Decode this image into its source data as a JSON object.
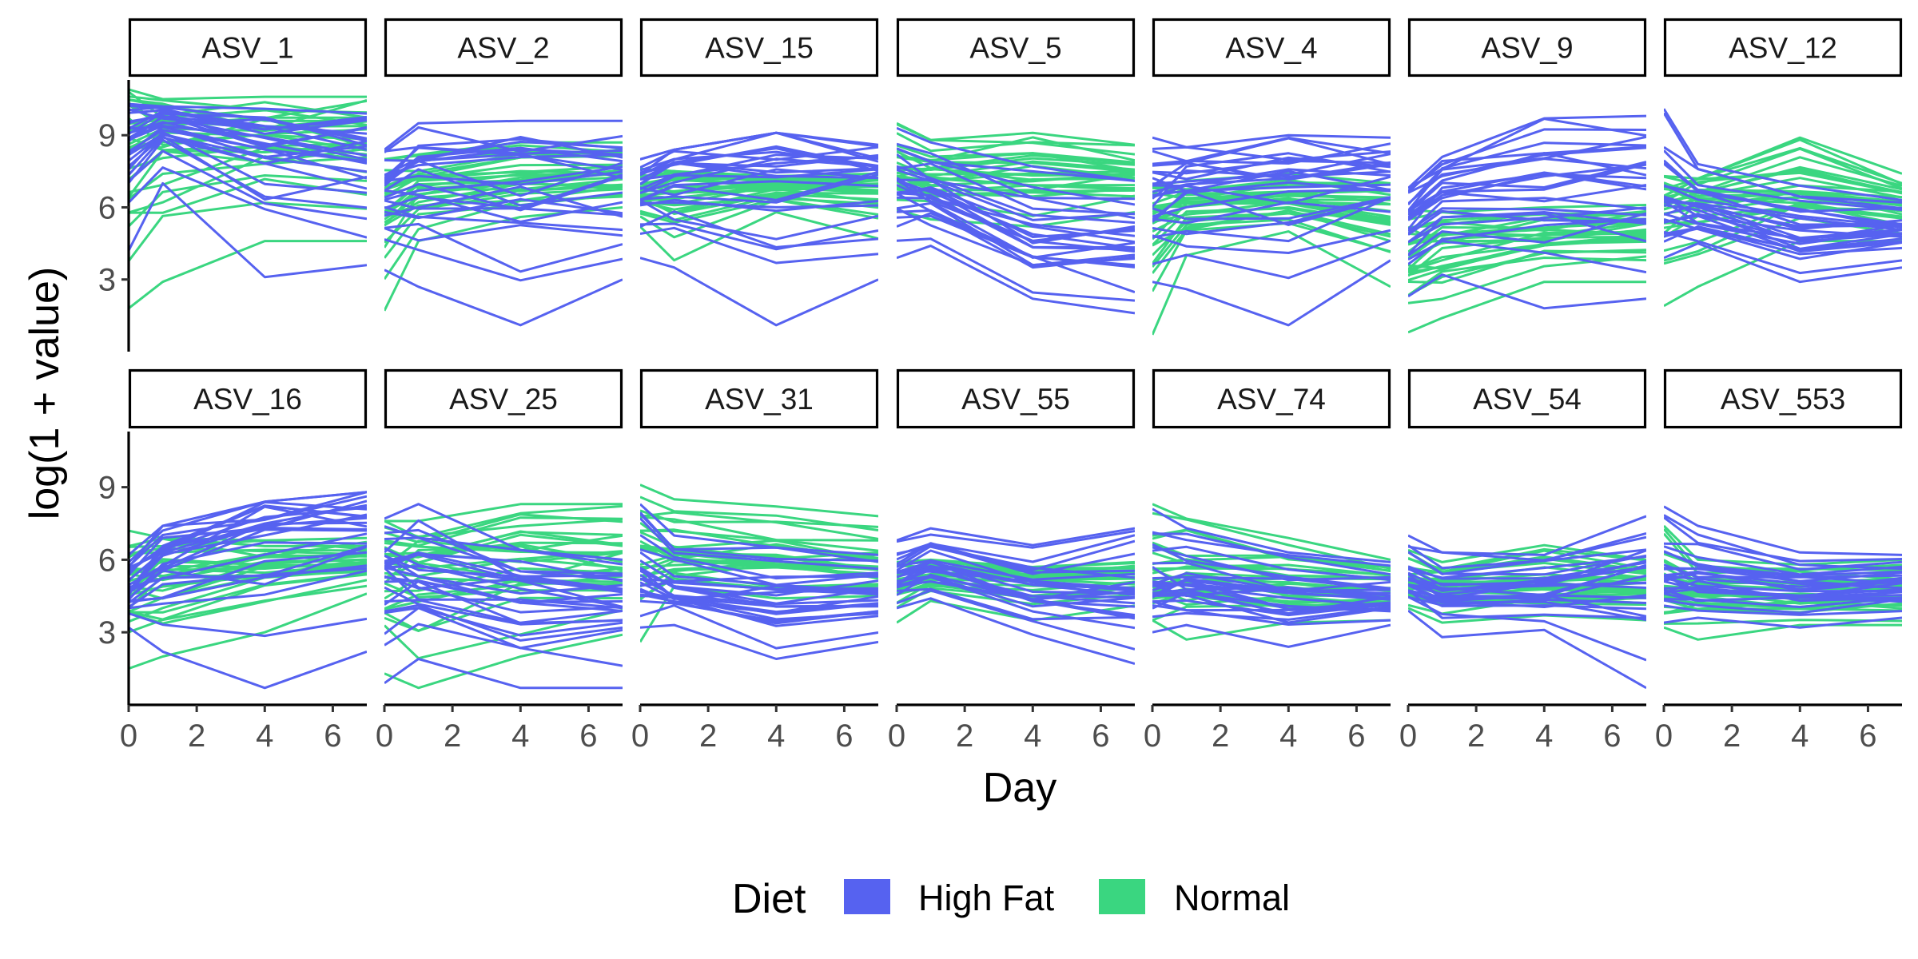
{
  "chart_data": {
    "type": "line",
    "xlabel": "Day",
    "ylabel": "log(1 + value)",
    "x_ticks": [
      0,
      2,
      4,
      6
    ],
    "y_ticks": [
      3,
      6,
      9
    ],
    "xlim": [
      0,
      7
    ],
    "ylim": [
      0,
      11.3
    ],
    "legend": {
      "title": "Diet",
      "position": "bottom",
      "entries": [
        {
          "label": "High Fat",
          "color": "#5662F0"
        },
        {
          "label": "Normal",
          "color": "#3AD680"
        }
      ]
    },
    "days": [
      0,
      1,
      4,
      7
    ],
    "panels": [
      {
        "name": "ASV_1",
        "high_fat": {
          "lo": [
            4.2,
            7.0,
            3.1,
            3.6
          ],
          "mid": [
            9.0,
            9.6,
            9.0,
            8.6
          ],
          "hi": [
            10.3,
            10.2,
            10.1,
            9.9
          ]
        },
        "normal": {
          "lo": [
            1.8,
            2.9,
            4.6,
            4.6
          ],
          "mid": [
            8.9,
            9.2,
            9.3,
            9.2
          ],
          "hi": [
            10.9,
            10.5,
            10.6,
            10.6
          ]
        }
      },
      {
        "name": "ASV_2",
        "high_fat": {
          "lo": [
            3.4,
            2.7,
            1.1,
            3.0
          ],
          "mid": [
            6.8,
            7.3,
            7.3,
            7.2
          ],
          "hi": [
            8.4,
            9.5,
            9.6,
            9.6
          ]
        },
        "normal": {
          "lo": [
            1.7,
            4.6,
            5.6,
            6.0
          ],
          "mid": [
            6.2,
            6.9,
            7.2,
            7.4
          ],
          "hi": [
            8.0,
            8.2,
            8.7,
            8.7
          ]
        }
      },
      {
        "name": "ASV_15",
        "high_fat": {
          "lo": [
            3.9,
            3.5,
            1.1,
            3.0
          ],
          "mid": [
            7.0,
            7.4,
            7.6,
            7.5
          ],
          "hi": [
            8.0,
            8.4,
            9.1,
            8.6
          ]
        },
        "normal": {
          "lo": [
            5.2,
            3.8,
            5.8,
            4.7
          ],
          "mid": [
            6.6,
            6.8,
            6.9,
            7.0
          ],
          "hi": [
            7.6,
            7.5,
            7.3,
            7.4
          ]
        }
      },
      {
        "name": "ASV_5",
        "high_fat": {
          "lo": [
            3.9,
            4.4,
            2.2,
            1.6
          ],
          "mid": [
            6.8,
            6.4,
            4.6,
            4.5
          ],
          "hi": [
            9.3,
            8.7,
            7.7,
            7.1
          ]
        },
        "normal": {
          "lo": [
            5.9,
            5.5,
            5.2,
            5.8
          ],
          "mid": [
            7.2,
            7.3,
            7.5,
            7.4
          ],
          "hi": [
            9.5,
            8.8,
            9.1,
            8.6
          ]
        }
      },
      {
        "name": "ASV_4",
        "high_fat": {
          "lo": [
            2.9,
            2.6,
            1.1,
            3.8
          ],
          "mid": [
            6.6,
            7.1,
            7.4,
            7.4
          ],
          "hi": [
            8.9,
            8.5,
            9.0,
            8.9
          ]
        },
        "normal": {
          "lo": [
            0.7,
            4.0,
            5.0,
            2.7
          ],
          "mid": [
            5.8,
            6.1,
            6.3,
            6.0
          ],
          "hi": [
            6.9,
            7.1,
            7.4,
            7.0
          ]
        }
      },
      {
        "name": "ASV_9",
        "high_fat": {
          "lo": [
            2.3,
            3.2,
            1.8,
            2.2
          ],
          "mid": [
            5.5,
            6.6,
            7.4,
            7.2
          ],
          "hi": [
            6.8,
            8.1,
            9.7,
            9.8
          ]
        },
        "normal": {
          "lo": [
            0.8,
            1.4,
            2.9,
            2.9
          ],
          "mid": [
            4.0,
            4.4,
            4.8,
            5.0
          ],
          "hi": [
            5.9,
            5.8,
            6.0,
            6.1
          ]
        }
      },
      {
        "name": "ASV_12",
        "high_fat": {
          "lo": [
            3.9,
            4.5,
            2.9,
            3.5
          ],
          "mid": [
            6.0,
            5.8,
            5.1,
            5.0
          ],
          "hi": [
            10.1,
            7.8,
            6.9,
            6.3
          ]
        },
        "normal": {
          "lo": [
            1.9,
            2.7,
            4.6,
            4.6
          ],
          "mid": [
            6.4,
            6.5,
            6.8,
            6.2
          ],
          "hi": [
            7.3,
            7.2,
            8.9,
            7.4
          ]
        }
      },
      {
        "name": "ASV_16",
        "high_fat": {
          "lo": [
            3.2,
            2.2,
            0.7,
            2.2
          ],
          "mid": [
            4.7,
            6.0,
            7.4,
            7.6
          ],
          "hi": [
            6.2,
            7.4,
            8.4,
            8.8
          ]
        },
        "normal": {
          "lo": [
            1.5,
            2.0,
            3.0,
            4.6
          ],
          "mid": [
            5.0,
            5.4,
            5.8,
            5.9
          ],
          "hi": [
            7.2,
            6.9,
            6.8,
            6.9
          ]
        }
      },
      {
        "name": "ASV_25",
        "high_fat": {
          "lo": [
            0.9,
            1.9,
            0.7,
            0.7
          ],
          "mid": [
            5.7,
            5.5,
            4.6,
            4.5
          ],
          "hi": [
            7.7,
            8.3,
            6.4,
            6.0
          ]
        },
        "normal": {
          "lo": [
            1.3,
            0.7,
            2.0,
            2.9
          ],
          "mid": [
            5.8,
            6.0,
            6.2,
            6.3
          ],
          "hi": [
            7.6,
            7.6,
            8.3,
            8.3
          ]
        }
      },
      {
        "name": "ASV_31",
        "high_fat": {
          "lo": [
            3.2,
            3.3,
            1.9,
            2.6
          ],
          "mid": [
            5.3,
            4.6,
            4.4,
            4.5
          ],
          "hi": [
            8.3,
            7.0,
            6.5,
            6.2
          ]
        },
        "normal": {
          "lo": [
            2.6,
            4.9,
            4.4,
            4.5
          ],
          "mid": [
            6.3,
            6.1,
            6.0,
            5.7
          ],
          "hi": [
            9.1,
            8.5,
            8.2,
            7.8
          ]
        }
      },
      {
        "name": "ASV_55",
        "high_fat": {
          "lo": [
            4.0,
            4.4,
            2.9,
            1.7
          ],
          "mid": [
            5.3,
            5.8,
            4.7,
            4.6
          ],
          "hi": [
            6.8,
            7.3,
            6.6,
            7.3
          ]
        },
        "normal": {
          "lo": [
            3.4,
            4.3,
            3.5,
            4.1
          ],
          "mid": [
            5.0,
            5.3,
            5.4,
            5.3
          ],
          "hi": [
            5.9,
            6.0,
            5.7,
            5.9
          ]
        }
      },
      {
        "name": "ASV_74",
        "high_fat": {
          "lo": [
            3.0,
            3.3,
            2.4,
            3.3
          ],
          "mid": [
            4.8,
            4.9,
            4.4,
            4.4
          ],
          "hi": [
            8.1,
            7.3,
            6.3,
            5.9
          ]
        },
        "normal": {
          "lo": [
            3.5,
            2.7,
            3.4,
            3.5
          ],
          "mid": [
            4.9,
            5.2,
            5.0,
            4.9
          ],
          "hi": [
            8.3,
            7.7,
            6.9,
            6.0
          ]
        }
      },
      {
        "name": "ASV_54",
        "high_fat": {
          "lo": [
            3.9,
            2.8,
            3.1,
            0.7
          ],
          "mid": [
            5.0,
            4.7,
            4.9,
            5.4
          ],
          "hi": [
            7.0,
            6.3,
            6.2,
            7.8
          ]
        },
        "normal": {
          "lo": [
            4.0,
            3.4,
            3.7,
            3.5
          ],
          "mid": [
            5.0,
            4.9,
            5.0,
            4.9
          ],
          "hi": [
            6.4,
            5.9,
            6.6,
            6.0
          ]
        }
      },
      {
        "name": "ASV_553",
        "high_fat": {
          "lo": [
            3.4,
            3.6,
            3.2,
            3.6
          ],
          "mid": [
            5.1,
            5.2,
            4.8,
            4.9
          ],
          "hi": [
            8.2,
            7.4,
            6.3,
            6.2
          ]
        },
        "normal": {
          "lo": [
            3.2,
            2.7,
            3.3,
            3.3
          ],
          "mid": [
            4.6,
            4.6,
            4.5,
            4.6
          ],
          "hi": [
            7.4,
            6.0,
            5.8,
            6.0
          ]
        }
      }
    ]
  }
}
